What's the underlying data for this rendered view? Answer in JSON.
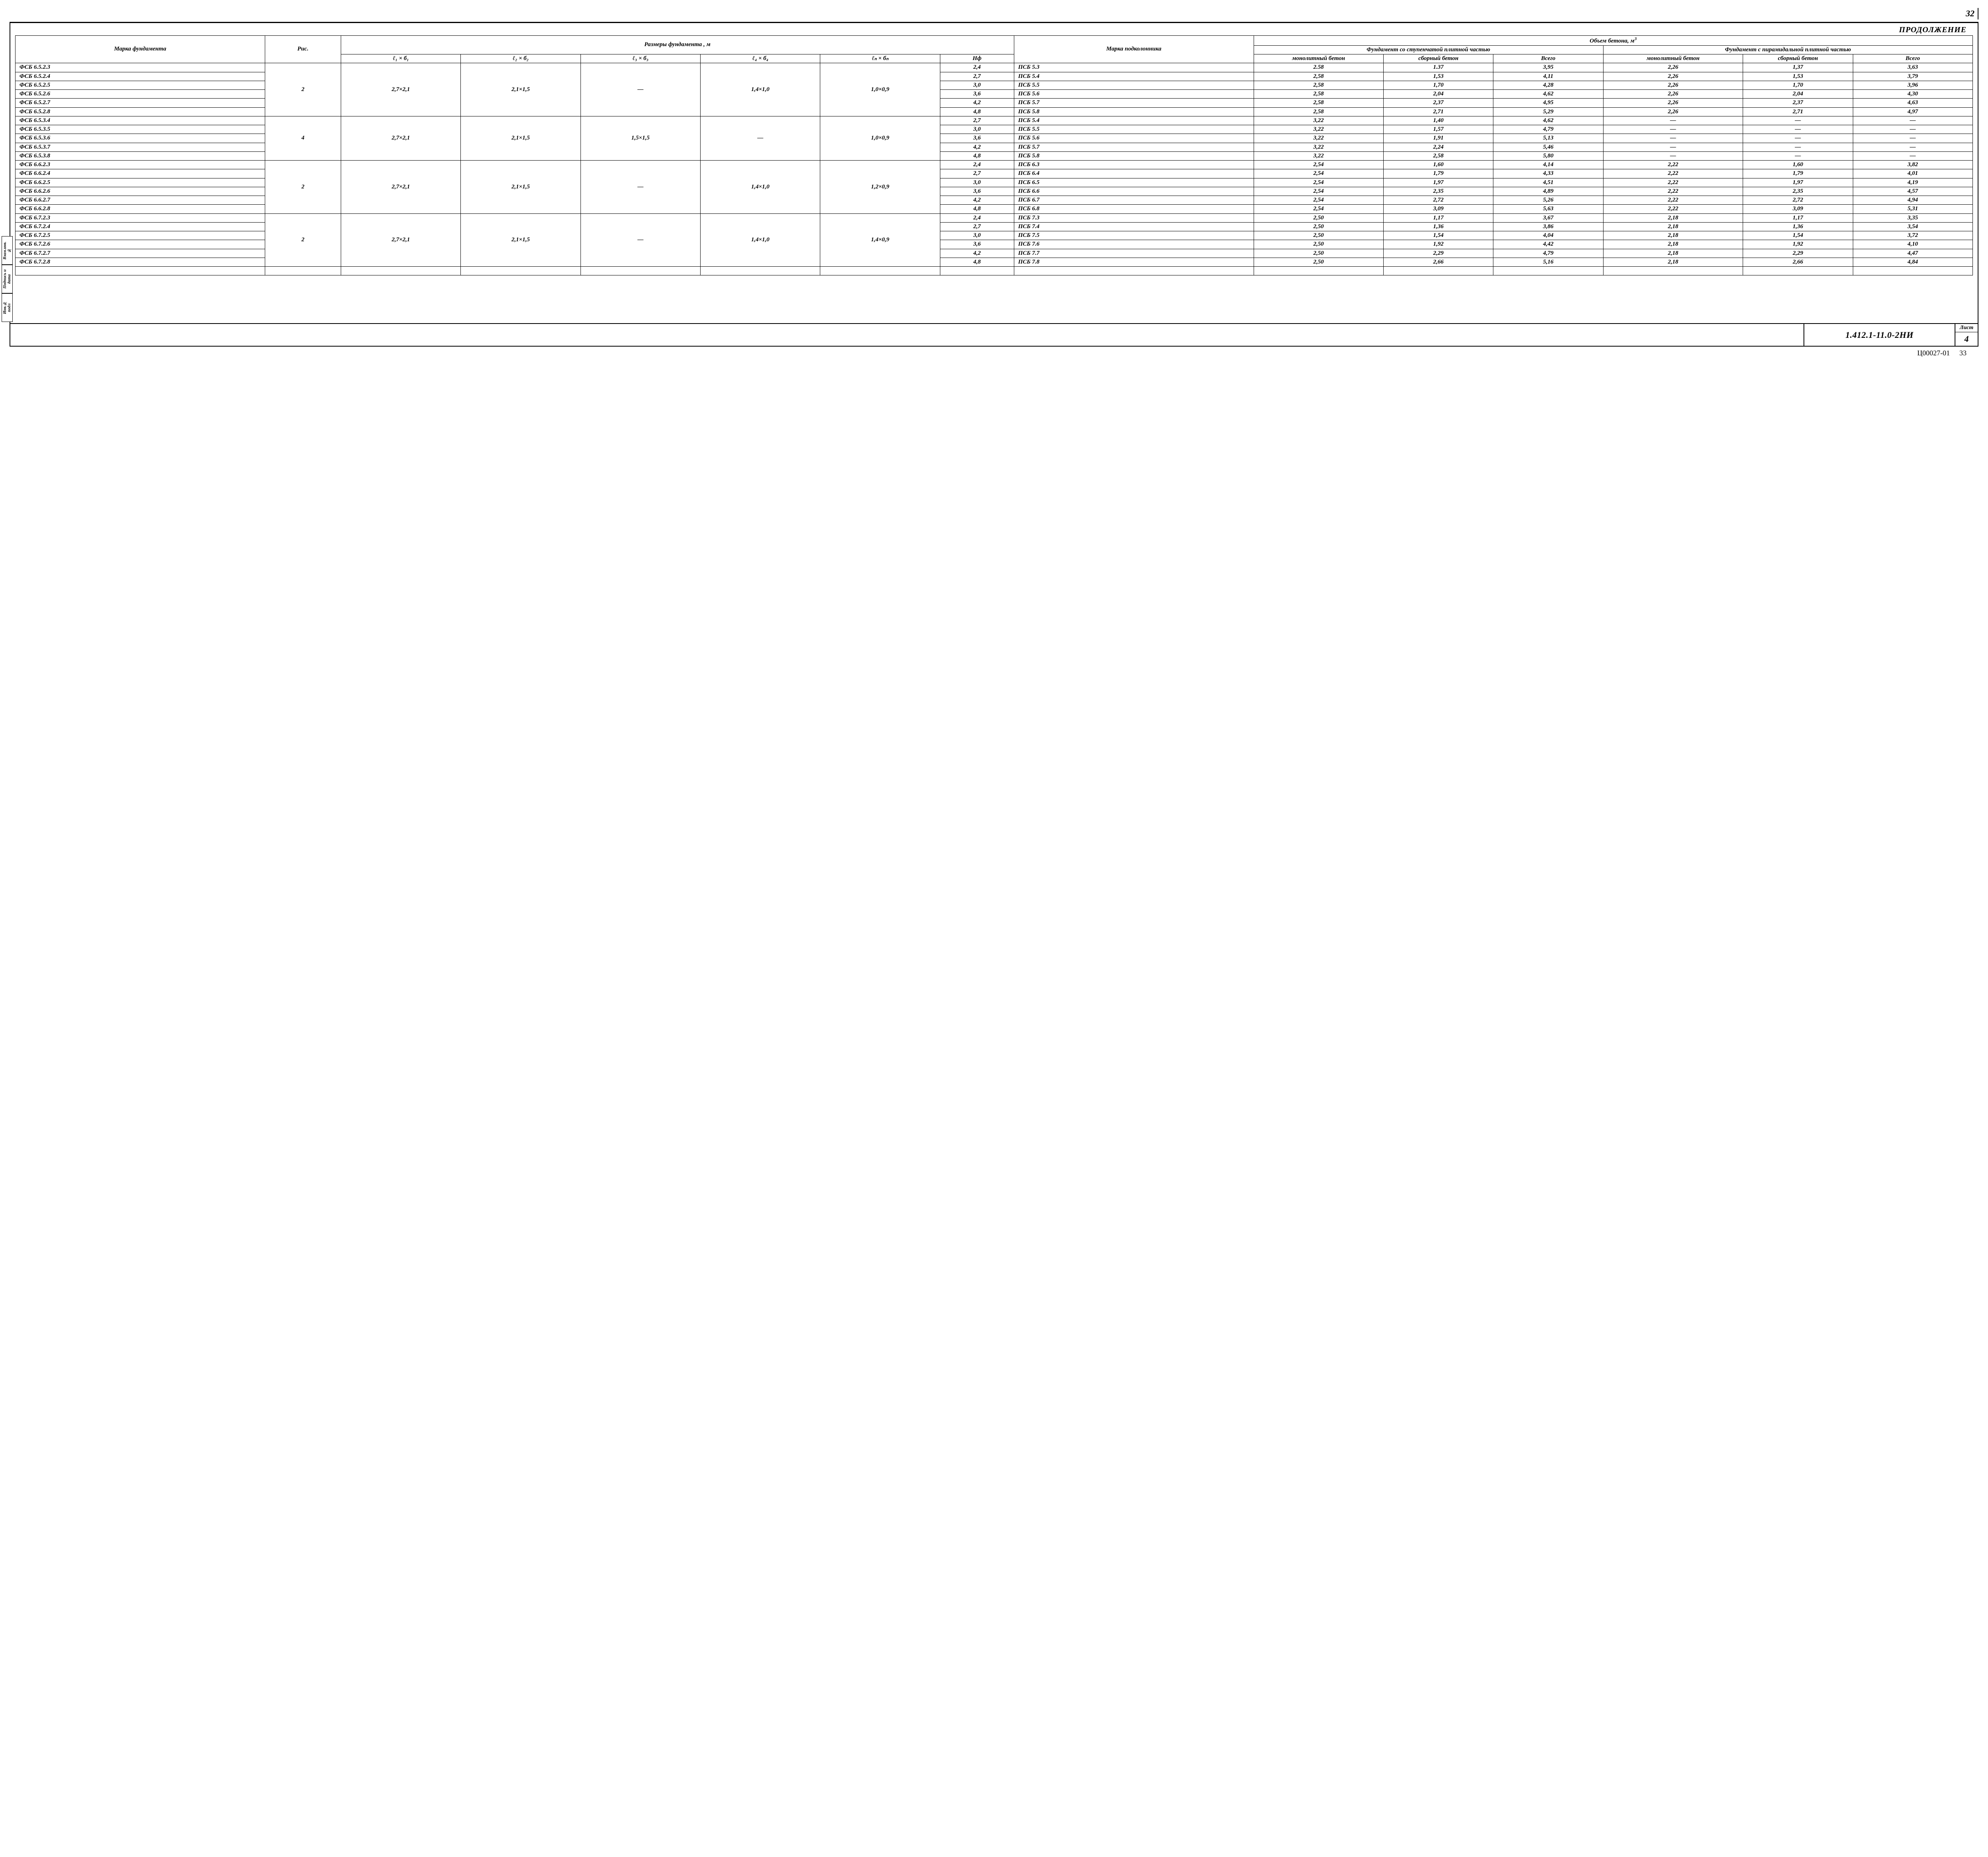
{
  "page_number_top": "32",
  "continuation_label": "Продолжение",
  "headers": {
    "marka_fund": "Марка фундамента",
    "ris": "Рис.",
    "razmery": "Размеры   фундамента ,  м",
    "l1b1": "ℓ₁ × б₁",
    "l2b2": "ℓ₂ × б₂",
    "l3b3": "ℓ₃ × б₃",
    "l4b4": "ℓ₄ × б₄",
    "lnbn": "ℓₙ × бₙ",
    "hf": "Hф",
    "marka_pod": "Марка подколонника",
    "obem": "Объем   бетона,   м",
    "obem_sup": "3",
    "stup": "Фундамент со ступенчатой плитной частью",
    "pir": "Фундамент с пирамидальной плитной частью",
    "monolit": "монолитный бетон",
    "sbor": "сборный бетон",
    "vsego": "Всего"
  },
  "groups": [
    {
      "ris": "2",
      "l1b1": "2,7×2,1",
      "l2b2": "2,1×1,5",
      "l3b3": "—",
      "l4b4": "1,4×1,0",
      "lnbn": "1,0×0,9",
      "rows": [
        {
          "marka": "ФСБ  6.5.2.3",
          "hf": "2,4",
          "pod": "ПСБ 5.3",
          "m": "2.58",
          "s": "1.37",
          "v": "3,95",
          "pm": "2,26",
          "ps": "1,37",
          "pv": "3,63"
        },
        {
          "marka": "ФСБ  6.5.2.4",
          "hf": "2,7",
          "pod": "ПСБ 5.4",
          "m": "2,58",
          "s": "1,53",
          "v": "4,11",
          "pm": "2,26",
          "ps": "1,53",
          "pv": "3,79"
        },
        {
          "marka": "ФСБ  6.5.2.5",
          "hf": "3,0",
          "pod": "ПСБ 5.5",
          "m": "2,58",
          "s": "1,70",
          "v": "4,28",
          "pm": "2,26",
          "ps": "1,70",
          "pv": "3,96"
        },
        {
          "marka": "ФСБ  6.5.2.6",
          "hf": "3,6",
          "pod": "ПСБ 5.6",
          "m": "2,58",
          "s": "2,04",
          "v": "4,62",
          "pm": "2,26",
          "ps": "2,04",
          "pv": "4,30"
        },
        {
          "marka": "ФСБ  6.5.2.7",
          "hf": "4,2",
          "pod": "ПСБ 5.7",
          "m": "2,58",
          "s": "2,37",
          "v": "4,95",
          "pm": "2,26",
          "ps": "2,37",
          "pv": "4,63"
        },
        {
          "marka": "ФСБ  6.5.2.8",
          "hf": "4,8",
          "pod": "ПСБ 5.8",
          "m": "2,58",
          "s": "2,71",
          "v": "5,29",
          "pm": "2,26",
          "ps": "2,71",
          "pv": "4,97"
        }
      ]
    },
    {
      "ris": "4",
      "l1b1": "2,7×2,1",
      "l2b2": "2,1×1,5",
      "l3b3": "1,5×1,5",
      "l4b4": "—",
      "lnbn": "1,0×0,9",
      "rows": [
        {
          "marka": "ФСБ  6.5.3.4",
          "hf": "2,7",
          "pod": "ПСБ 5.4",
          "m": "3,22",
          "s": "1,40",
          "v": "4,62",
          "pm": "—",
          "ps": "—",
          "pv": "—"
        },
        {
          "marka": "ФСБ  6.5.3.5",
          "hf": "3,0",
          "pod": "ПСБ 5.5",
          "m": "3,22",
          "s": "1,57",
          "v": "4,79",
          "pm": "—",
          "ps": "—",
          "pv": "—"
        },
        {
          "marka": "ФСБ  6.5.3.6",
          "hf": "3,6",
          "pod": "ПСБ 5.6",
          "m": "3,22",
          "s": "1,91",
          "v": "5,13",
          "pm": "—",
          "ps": "—",
          "pv": "—"
        },
        {
          "marka": "ФСБ  6.5.3.7",
          "hf": "4,2",
          "pod": "ПСБ 5.7",
          "m": "3,22",
          "s": "2,24",
          "v": "5,46",
          "pm": "—",
          "ps": "—",
          "pv": "—"
        },
        {
          "marka": "ФСБ  6.5.3.8",
          "hf": "4,8",
          "pod": "ПСБ 5.8",
          "m": "3,22",
          "s": "2,58",
          "v": "5,80",
          "pm": "—",
          "ps": "—",
          "pv": "—"
        }
      ]
    },
    {
      "ris": "2",
      "l1b1": "2,7×2,1",
      "l2b2": "2,1×1,5",
      "l3b3": "—",
      "l4b4": "1,4×1,0",
      "lnbn": "1,2×0,9",
      "rows": [
        {
          "marka": "ФСБ  6.6.2.3",
          "hf": "2,4",
          "pod": "ПСБ 6.3",
          "m": "2,54",
          "s": "1,60",
          "v": "4,14",
          "pm": "2,22",
          "ps": "1,60",
          "pv": "3,82"
        },
        {
          "marka": "ФСБ  6.6.2.4",
          "hf": "2,7",
          "pod": "ПСБ 6.4",
          "m": "2,54",
          "s": "1,79",
          "v": "4,33",
          "pm": "2,22",
          "ps": "1,79",
          "pv": "4,01"
        },
        {
          "marka": "ФСБ  6.6.2.5",
          "hf": "3,0",
          "pod": "ПСБ 6.5",
          "m": "2,54",
          "s": "1,97",
          "v": "4,51",
          "pm": "2,22",
          "ps": "1,97",
          "pv": "4,19"
        },
        {
          "marka": "ФСБ  6.6.2.6",
          "hf": "3,6",
          "pod": "ПСБ 6.6",
          "m": "2,54",
          "s": "2,35",
          "v": "4,89",
          "pm": "2,22",
          "ps": "2,35",
          "pv": "4,57"
        },
        {
          "marka": "ФСБ  6.6.2.7",
          "hf": "4,2",
          "pod": "ПСБ 6.7",
          "m": "2,54",
          "s": "2,72",
          "v": "5,26",
          "pm": "2,22",
          "ps": "2,72",
          "pv": "4,94"
        },
        {
          "marka": "ФСБ  6.6.2.8",
          "hf": "4,8",
          "pod": "ПСБ 6.8",
          "m": "2,54",
          "s": "3,09",
          "v": "5,63",
          "pm": "2,22",
          "ps": "3,09",
          "pv": "5,31"
        }
      ]
    },
    {
      "ris": "2",
      "l1b1": "2,7×2,1",
      "l2b2": "2,1×1,5",
      "l3b3": "—",
      "l4b4": "1,4×1,0",
      "lnbn": "1,4×0,9",
      "rows": [
        {
          "marka": "ФСБ  6.7.2.3",
          "hf": "2,4",
          "pod": "ПСБ 7.3",
          "m": "2,50",
          "s": "1,17",
          "v": "3,67",
          "pm": "2,18",
          "ps": "1,17",
          "pv": "3,35"
        },
        {
          "marka": "ФСБ  6.7.2.4",
          "hf": "2,7",
          "pod": "ПСБ 7.4",
          "m": "2,50",
          "s": "1,36",
          "v": "3,86",
          "pm": "2,18",
          "ps": "1,36",
          "pv": "3,54"
        },
        {
          "marka": "ФСБ  6.7.2.5",
          "hf": "3,0",
          "pod": "ПСБ 7.5",
          "m": "2,50",
          "s": "1,54",
          "v": "4,04",
          "pm": "2,18",
          "ps": "1,54",
          "pv": "3,72"
        },
        {
          "marka": "ФСБ  6.7.2.6",
          "hf": "3,6",
          "pod": "ПСБ 7.6",
          "m": "2,50",
          "s": "1,92",
          "v": "4,42",
          "pm": "2,18",
          "ps": "1,92",
          "pv": "4,10"
        },
        {
          "marka": "ФСБ  6.7.2.7",
          "hf": "4,2",
          "pod": "ПСБ 7.7",
          "m": "2,50",
          "s": "2,29",
          "v": "4,79",
          "pm": "2,18",
          "ps": "2,29",
          "pv": "4,47"
        },
        {
          "marka": "ФСБ  6.7.2.8",
          "hf": "4,8",
          "pod": "ПСБ 7.8",
          "m": "2,50",
          "s": "2,66",
          "v": "5,16",
          "pm": "2,18",
          "ps": "2,66",
          "pv": "4,84"
        }
      ]
    }
  ],
  "side_tabs": [
    "Инв.№ подл",
    "Подпись и дата",
    "Взам.инв.№"
  ],
  "title_block": {
    "doc_code": "1.412.1-11.0-2НИ",
    "sheet_label": "Лист",
    "sheet_num": "4"
  },
  "footer": {
    "code": "Ц00027-01",
    "page": "33"
  },
  "colwidths_pct": [
    12.5,
    3.8,
    6.0,
    6.0,
    6.0,
    6.0,
    6.0,
    3.7,
    12.0,
    6.5,
    5.5,
    5.5,
    7.0,
    5.5,
    6.0
  ],
  "styling": {
    "font_family": "Times New Roman, serif (italic, GOST-like)",
    "border_color": "#000000",
    "background_color": "#ffffff",
    "header_fontsize_pt": 15,
    "body_fontsize_pt": 15,
    "small_header_fontsize_pt": 12.5
  }
}
